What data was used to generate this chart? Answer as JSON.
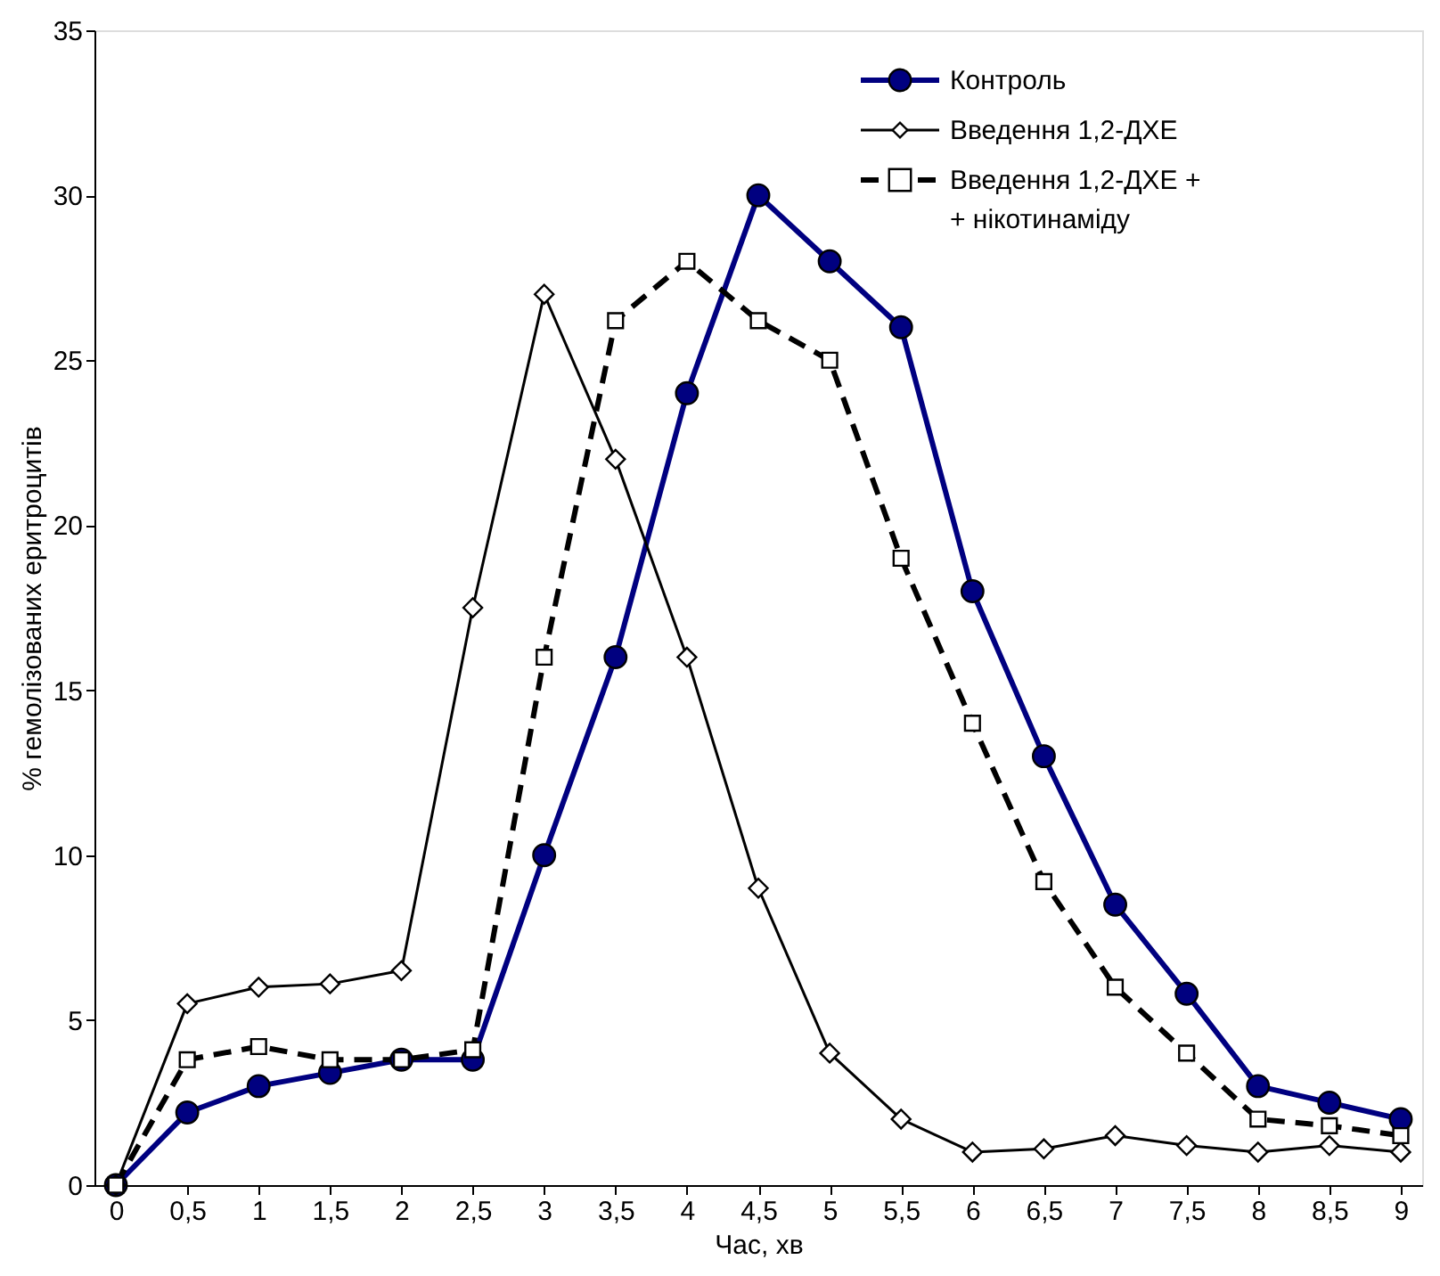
{
  "chart_data": {
    "type": "line",
    "xlabel": "Час, хв",
    "ylabel": "% гемолізованих еритроцитів",
    "categories": [
      "0",
      "0,5",
      "1",
      "1,5",
      "2",
      "2,5",
      "3",
      "3,5",
      "4",
      "4,5",
      "5",
      "5,5",
      "6",
      "6,5",
      "7",
      "7,5",
      "8",
      "8,5",
      "9"
    ],
    "series": [
      {
        "name": "Контроль",
        "color": "#000080",
        "marker": "circle",
        "line_style": "solid",
        "values": [
          0,
          2.2,
          3,
          3.4,
          3.8,
          3.8,
          10,
          16,
          24,
          30,
          28,
          26,
          18,
          13,
          8.5,
          5.8,
          3,
          2.5,
          2
        ]
      },
      {
        "name": "Введення 1,2-ДХЕ",
        "color": "#000000",
        "marker": "diamond",
        "line_style": "solid",
        "values": [
          0,
          5.5,
          6,
          6.1,
          6.5,
          17.5,
          27,
          22,
          16,
          9,
          4,
          2,
          1,
          1.1,
          1.5,
          1.2,
          1,
          1.2,
          1
        ]
      },
      {
        "name": "Введення 1,2-ДХЕ +\n+ нікотинаміду",
        "color": "#000000",
        "marker": "square",
        "line_style": "dashed",
        "values": [
          0,
          3.8,
          4.2,
          3.8,
          3.8,
          4.1,
          16,
          26.2,
          28,
          26.2,
          25,
          19,
          14,
          9.2,
          6,
          4,
          2,
          1.8,
          1.5
        ]
      }
    ],
    "ylim": [
      0,
      35
    ],
    "yticks": [
      0,
      5,
      10,
      15,
      20,
      25,
      30,
      35
    ],
    "grid": false,
    "legend": "top right"
  }
}
